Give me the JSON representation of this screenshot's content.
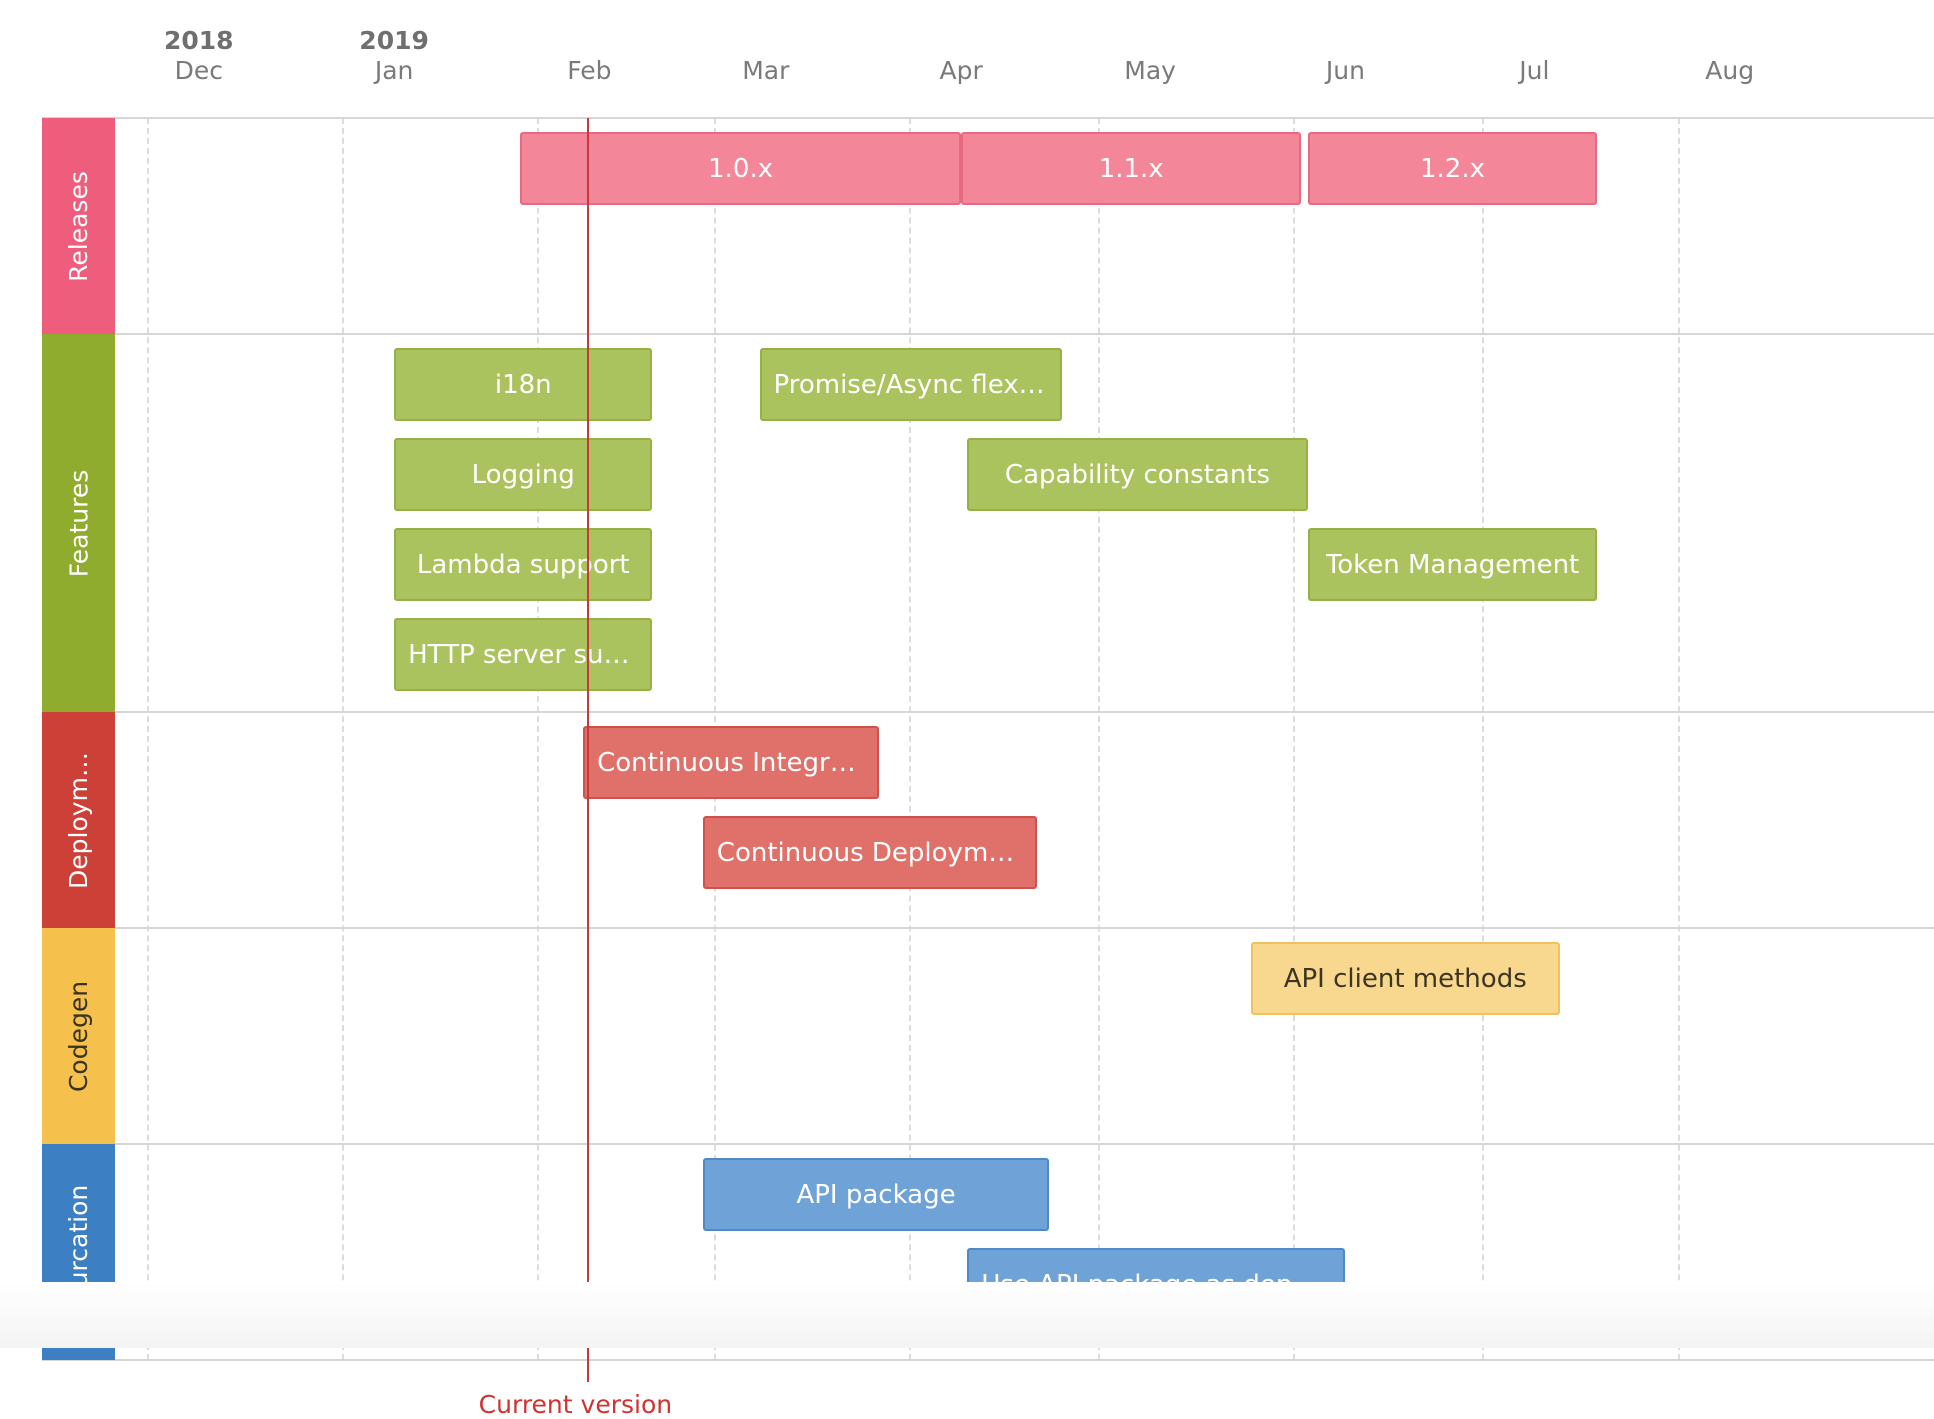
{
  "timeline": {
    "start": "2018-11-15",
    "years": [
      {
        "label": "2018",
        "date": "2018-12-01"
      },
      {
        "label": "2019",
        "date": "2019-01-01"
      }
    ],
    "months": [
      {
        "label": "Dec",
        "date": "2018-12-01"
      },
      {
        "label": "Jan",
        "date": "2019-01-01"
      },
      {
        "label": "Feb",
        "date": "2019-02-01"
      },
      {
        "label": "Mar",
        "date": "2019-03-01"
      },
      {
        "label": "Apr",
        "date": "2019-04-01"
      },
      {
        "label": "May",
        "date": "2019-05-01"
      },
      {
        "label": "Jun",
        "date": "2019-06-01"
      },
      {
        "label": "Jul",
        "date": "2019-07-01"
      },
      {
        "label": "Aug",
        "date": "2019-08-01"
      }
    ],
    "current_version": {
      "label": "Current version",
      "date": "2019-02-01"
    },
    "groups": [
      {
        "id": "releases",
        "label": "Releases",
        "color": "#ee5e7c",
        "label_color": "#ffffff",
        "lanes": 2,
        "items": [
          {
            "label": "1.0.x",
            "start": "2019-01-21",
            "end": "2019-04-01",
            "lane": 0,
            "color": "#f38699",
            "border": "#e86a82",
            "text": "#ffffff"
          },
          {
            "label": "1.1.x",
            "start": "2019-04-01",
            "end": "2019-05-25",
            "lane": 0,
            "color": "#f38699",
            "border": "#e86a82",
            "text": "#ffffff"
          },
          {
            "label": "1.2.x",
            "start": "2019-05-26",
            "end": "2019-07-11",
            "lane": 0,
            "color": "#f38699",
            "border": "#e86a82",
            "text": "#ffffff"
          }
        ]
      },
      {
        "id": "features",
        "label": "Features",
        "color": "#8fac2f",
        "label_color": "#ffffff",
        "lanes": 4,
        "items": [
          {
            "label": "i18n",
            "start": "2019-01-01",
            "end": "2019-02-11",
            "lane": 0,
            "color": "#abc35e",
            "border": "#97b043",
            "text": "#ffffff"
          },
          {
            "label": "Promise/Async flexib…",
            "start": "2019-02-28",
            "end": "2019-04-17",
            "lane": 0,
            "color": "#abc35e",
            "border": "#97b043",
            "text": "#ffffff"
          },
          {
            "label": "Logging",
            "start": "2019-01-01",
            "end": "2019-02-11",
            "lane": 1,
            "color": "#abc35e",
            "border": "#97b043",
            "text": "#ffffff"
          },
          {
            "label": "Capability constants",
            "start": "2019-04-02",
            "end": "2019-05-26",
            "lane": 1,
            "color": "#abc35e",
            "border": "#97b043",
            "text": "#ffffff"
          },
          {
            "label": "Lambda support",
            "start": "2019-01-01",
            "end": "2019-02-11",
            "lane": 2,
            "color": "#abc35e",
            "border": "#97b043",
            "text": "#ffffff"
          },
          {
            "label": "Token Management",
            "start": "2019-05-26",
            "end": "2019-07-11",
            "lane": 2,
            "color": "#abc35e",
            "border": "#97b043",
            "text": "#ffffff"
          },
          {
            "label": "HTTP server sup…",
            "start": "2019-01-01",
            "end": "2019-02-11",
            "lane": 3,
            "color": "#abc35e",
            "border": "#97b043",
            "text": "#ffffff"
          }
        ]
      },
      {
        "id": "deployment",
        "label": "Deploym…",
        "color": "#cc4038",
        "label_color": "#ffffff",
        "lanes": 2,
        "items": [
          {
            "label": "Continuous Integrat…",
            "start": "2019-01-31",
            "end": "2019-03-19",
            "lane": 0,
            "color": "#df706a",
            "border": "#cf514a",
            "text": "#ffffff"
          },
          {
            "label": "Continuous Deployment",
            "start": "2019-02-19",
            "end": "2019-04-13",
            "lane": 1,
            "color": "#df706a",
            "border": "#cf514a",
            "text": "#ffffff"
          }
        ]
      },
      {
        "id": "codegen",
        "label": "Codegen",
        "color": "#f5c04c",
        "label_color": "#3a3320",
        "lanes": 2,
        "items": [
          {
            "label": "API client methods",
            "start": "2019-05-17",
            "end": "2019-07-05",
            "lane": 0,
            "color": "#f8d88f",
            "border": "#f0c25d",
            "text": "#3d3522"
          }
        ]
      },
      {
        "id": "bifurcation",
        "label": "Bifurcation",
        "color": "#3d7fc3",
        "label_color": "#ffffff",
        "lanes": 2,
        "items": [
          {
            "label": "API package",
            "start": "2019-02-19",
            "end": "2019-04-15",
            "lane": 0,
            "color": "#6fa2d6",
            "border": "#4f89c8",
            "text": "#ffffff"
          },
          {
            "label": "Use API package as depen…",
            "start": "2019-04-02",
            "end": "2019-06-01",
            "lane": 1,
            "color": "#6fa2d6",
            "border": "#4f89c8",
            "text": "#ffffff"
          }
        ]
      }
    ]
  }
}
